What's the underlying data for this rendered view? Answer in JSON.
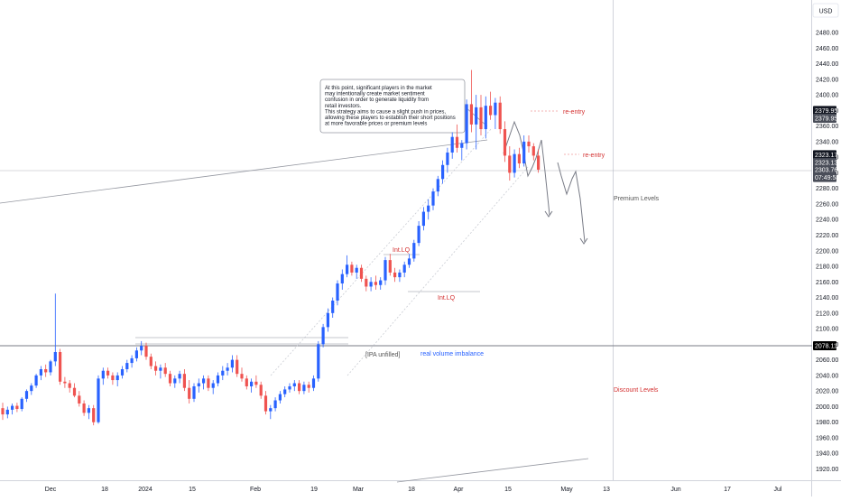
{
  "currency": "USD",
  "colors": {
    "up": "#2962ff",
    "down": "#ef5350",
    "annotation_red": "#d32f2f",
    "annotation_blue": "#2962ff",
    "annotation_gray": "#555555",
    "grid": "#f0f3fa",
    "tag_dark": "#131722",
    "tag_mid": "#4a4e59"
  },
  "price_tags": [
    {
      "value": "2379.95",
      "price": 2379.95,
      "style": "dark"
    },
    {
      "value": "2379.95",
      "price": 2370,
      "style": "mid"
    },
    {
      "value": "2323.17",
      "price": 2323.17,
      "style": "dark"
    },
    {
      "value": "2323.13",
      "price": 2313,
      "style": "mid"
    },
    {
      "value": "2303.76",
      "price": 2303.76,
      "style": "mid"
    },
    {
      "value": "07:49:58",
      "price": 2294,
      "style": "mid"
    },
    {
      "value": "2078.11",
      "price": 2078.11,
      "style": "black"
    }
  ],
  "annotations": {
    "callout": [
      "At this point, significant players in the market",
      "may intentionally create market sentiment",
      "confusion in order to generate liquidity from",
      "retail investors.",
      "This strategy aims to cause a slight push in prices,",
      "allowing these players to establish their short positions",
      "at more favorable prices or premium levels"
    ],
    "reentry_1": "re-entry",
    "reentry_2": "re-entry",
    "premium": "Premium Levels",
    "discount": "Discount Levels",
    "int_lq_1": "Int.LQ",
    "int_lq_2": "Int.LQ",
    "ipa_unfilled": "[IPA unfilled]",
    "real_volume": "real volume imbalance"
  },
  "chart_data": {
    "type": "candlestick",
    "title": "",
    "xlabel": "",
    "ylabel": "USD",
    "ylim": [
      1910,
      2500
    ],
    "y_ticks": [
      1920,
      1940,
      1960,
      1980,
      2000,
      2020,
      2040,
      2060,
      2080,
      2100,
      2120,
      2140,
      2160,
      2180,
      2200,
      2220,
      2240,
      2260,
      2280,
      2300,
      2320,
      2340,
      2360,
      2380,
      2400,
      2420,
      2440,
      2460,
      2480
    ],
    "x_ticks": [
      "Dec",
      "18",
      "2024",
      "15",
      "Feb",
      "19",
      "Mar",
      "18",
      "Apr",
      "15",
      "May",
      "13",
      "Jun",
      "17",
      "Jul"
    ],
    "grid": false,
    "price_levels": {
      "current": 2303.76,
      "horizontal_line": 2078.11,
      "high_line": 2323.13
    },
    "candles": [
      {
        "o": 1998,
        "h": 2005,
        "l": 1983,
        "c": 1990
      },
      {
        "o": 1990,
        "h": 2000,
        "l": 1985,
        "c": 1996
      },
      {
        "o": 1996,
        "h": 2004,
        "l": 1990,
        "c": 2001
      },
      {
        "o": 2001,
        "h": 2005,
        "l": 1993,
        "c": 1997
      },
      {
        "o": 1997,
        "h": 2012,
        "l": 1994,
        "c": 2010
      },
      {
        "o": 2010,
        "h": 2022,
        "l": 2006,
        "c": 2020
      },
      {
        "o": 2020,
        "h": 2030,
        "l": 2015,
        "c": 2027
      },
      {
        "o": 2027,
        "h": 2042,
        "l": 2024,
        "c": 2040
      },
      {
        "o": 2040,
        "h": 2052,
        "l": 2034,
        "c": 2048
      },
      {
        "o": 2048,
        "h": 2054,
        "l": 2038,
        "c": 2044
      },
      {
        "o": 2044,
        "h": 2060,
        "l": 2040,
        "c": 2058
      },
      {
        "o": 2058,
        "h": 2145,
        "l": 2052,
        "c": 2070
      },
      {
        "o": 2070,
        "h": 2074,
        "l": 2028,
        "c": 2032
      },
      {
        "o": 2032,
        "h": 2038,
        "l": 2024,
        "c": 2030
      },
      {
        "o": 2030,
        "h": 2034,
        "l": 2018,
        "c": 2024
      },
      {
        "o": 2024,
        "h": 2030,
        "l": 2012,
        "c": 2014
      },
      {
        "o": 2014,
        "h": 2020,
        "l": 2000,
        "c": 2004
      },
      {
        "o": 2004,
        "h": 2008,
        "l": 1988,
        "c": 1992
      },
      {
        "o": 1992,
        "h": 2002,
        "l": 1984,
        "c": 1998
      },
      {
        "o": 1998,
        "h": 2002,
        "l": 1976,
        "c": 1980
      },
      {
        "o": 1980,
        "h": 2040,
        "l": 1978,
        "c": 2036
      },
      {
        "o": 2036,
        "h": 2050,
        "l": 2028,
        "c": 2046
      },
      {
        "o": 2046,
        "h": 2050,
        "l": 2036,
        "c": 2040
      },
      {
        "o": 2040,
        "h": 2044,
        "l": 2028,
        "c": 2034
      },
      {
        "o": 2034,
        "h": 2044,
        "l": 2026,
        "c": 2040
      },
      {
        "o": 2040,
        "h": 2052,
        "l": 2036,
        "c": 2048
      },
      {
        "o": 2048,
        "h": 2060,
        "l": 2044,
        "c": 2056
      },
      {
        "o": 2056,
        "h": 2066,
        "l": 2050,
        "c": 2062
      },
      {
        "o": 2062,
        "h": 2076,
        "l": 2058,
        "c": 2072
      },
      {
        "o": 2072,
        "h": 2084,
        "l": 2066,
        "c": 2078
      },
      {
        "o": 2078,
        "h": 2082,
        "l": 2060,
        "c": 2064
      },
      {
        "o": 2064,
        "h": 2068,
        "l": 2048,
        "c": 2052
      },
      {
        "o": 2052,
        "h": 2058,
        "l": 2040,
        "c": 2046
      },
      {
        "o": 2046,
        "h": 2054,
        "l": 2036,
        "c": 2050
      },
      {
        "o": 2050,
        "h": 2056,
        "l": 2038,
        "c": 2042
      },
      {
        "o": 2042,
        "h": 2046,
        "l": 2026,
        "c": 2030
      },
      {
        "o": 2030,
        "h": 2040,
        "l": 2024,
        "c": 2036
      },
      {
        "o": 2036,
        "h": 2046,
        "l": 2030,
        "c": 2042
      },
      {
        "o": 2042,
        "h": 2048,
        "l": 2020,
        "c": 2024
      },
      {
        "o": 2024,
        "h": 2034,
        "l": 2004,
        "c": 2010
      },
      {
        "o": 2010,
        "h": 2030,
        "l": 2006,
        "c": 2026
      },
      {
        "o": 2026,
        "h": 2036,
        "l": 2018,
        "c": 2030
      },
      {
        "o": 2030,
        "h": 2040,
        "l": 2022,
        "c": 2036
      },
      {
        "o": 2036,
        "h": 2040,
        "l": 2020,
        "c": 2024
      },
      {
        "o": 2024,
        "h": 2034,
        "l": 2016,
        "c": 2030
      },
      {
        "o": 2030,
        "h": 2044,
        "l": 2026,
        "c": 2040
      },
      {
        "o": 2040,
        "h": 2052,
        "l": 2034,
        "c": 2046
      },
      {
        "o": 2046,
        "h": 2056,
        "l": 2040,
        "c": 2050
      },
      {
        "o": 2050,
        "h": 2066,
        "l": 2044,
        "c": 2060
      },
      {
        "o": 2060,
        "h": 2066,
        "l": 2038,
        "c": 2042
      },
      {
        "o": 2042,
        "h": 2050,
        "l": 2032,
        "c": 2036
      },
      {
        "o": 2036,
        "h": 2040,
        "l": 2022,
        "c": 2026
      },
      {
        "o": 2026,
        "h": 2036,
        "l": 2018,
        "c": 2032
      },
      {
        "o": 2032,
        "h": 2040,
        "l": 2024,
        "c": 2028
      },
      {
        "o": 2028,
        "h": 2032,
        "l": 2010,
        "c": 2014
      },
      {
        "o": 2014,
        "h": 2020,
        "l": 1990,
        "c": 1994
      },
      {
        "o": 1994,
        "h": 2002,
        "l": 1984,
        "c": 1998
      },
      {
        "o": 1998,
        "h": 2012,
        "l": 1994,
        "c": 2008
      },
      {
        "o": 2008,
        "h": 2020,
        "l": 2004,
        "c": 2016
      },
      {
        "o": 2016,
        "h": 2026,
        "l": 2012,
        "c": 2022
      },
      {
        "o": 2022,
        "h": 2030,
        "l": 2018,
        "c": 2026
      },
      {
        "o": 2026,
        "h": 2034,
        "l": 2020,
        "c": 2030
      },
      {
        "o": 2030,
        "h": 2034,
        "l": 2016,
        "c": 2020
      },
      {
        "o": 2020,
        "h": 2032,
        "l": 2016,
        "c": 2028
      },
      {
        "o": 2028,
        "h": 2032,
        "l": 2018,
        "c": 2024
      },
      {
        "o": 2024,
        "h": 2040,
        "l": 2020,
        "c": 2036
      },
      {
        "o": 2036,
        "h": 2084,
        "l": 2032,
        "c": 2080
      },
      {
        "o": 2080,
        "h": 2106,
        "l": 2076,
        "c": 2102
      },
      {
        "o": 2102,
        "h": 2126,
        "l": 2096,
        "c": 2120
      },
      {
        "o": 2120,
        "h": 2140,
        "l": 2114,
        "c": 2136
      },
      {
        "o": 2136,
        "h": 2162,
        "l": 2130,
        "c": 2158
      },
      {
        "o": 2158,
        "h": 2176,
        "l": 2150,
        "c": 2170
      },
      {
        "o": 2170,
        "h": 2194,
        "l": 2166,
        "c": 2182
      },
      {
        "o": 2182,
        "h": 2186,
        "l": 2168,
        "c": 2172
      },
      {
        "o": 2172,
        "h": 2182,
        "l": 2164,
        "c": 2178
      },
      {
        "o": 2178,
        "h": 2182,
        "l": 2160,
        "c": 2164
      },
      {
        "o": 2164,
        "h": 2168,
        "l": 2148,
        "c": 2154
      },
      {
        "o": 2154,
        "h": 2166,
        "l": 2148,
        "c": 2160
      },
      {
        "o": 2160,
        "h": 2168,
        "l": 2150,
        "c": 2156
      },
      {
        "o": 2156,
        "h": 2166,
        "l": 2150,
        "c": 2162
      },
      {
        "o": 2162,
        "h": 2192,
        "l": 2156,
        "c": 2188
      },
      {
        "o": 2188,
        "h": 2196,
        "l": 2168,
        "c": 2172
      },
      {
        "o": 2172,
        "h": 2178,
        "l": 2160,
        "c": 2166
      },
      {
        "o": 2166,
        "h": 2176,
        "l": 2160,
        "c": 2172
      },
      {
        "o": 2172,
        "h": 2186,
        "l": 2166,
        "c": 2182
      },
      {
        "o": 2182,
        "h": 2196,
        "l": 2178,
        "c": 2190
      },
      {
        "o": 2190,
        "h": 2214,
        "l": 2186,
        "c": 2210
      },
      {
        "o": 2210,
        "h": 2238,
        "l": 2206,
        "c": 2232
      },
      {
        "o": 2232,
        "h": 2256,
        "l": 2226,
        "c": 2250
      },
      {
        "o": 2250,
        "h": 2266,
        "l": 2240,
        "c": 2258
      },
      {
        "o": 2258,
        "h": 2280,
        "l": 2252,
        "c": 2276
      },
      {
        "o": 2276,
        "h": 2296,
        "l": 2270,
        "c": 2292
      },
      {
        "o": 2292,
        "h": 2316,
        "l": 2286,
        "c": 2310
      },
      {
        "o": 2310,
        "h": 2332,
        "l": 2300,
        "c": 2326
      },
      {
        "o": 2326,
        "h": 2352,
        "l": 2318,
        "c": 2346
      },
      {
        "o": 2346,
        "h": 2362,
        "l": 2326,
        "c": 2332
      },
      {
        "o": 2332,
        "h": 2342,
        "l": 2316,
        "c": 2338
      },
      {
        "o": 2338,
        "h": 2394,
        "l": 2330,
        "c": 2388
      },
      {
        "o": 2388,
        "h": 2432,
        "l": 2352,
        "c": 2362
      },
      {
        "o": 2362,
        "h": 2400,
        "l": 2330,
        "c": 2384
      },
      {
        "o": 2384,
        "h": 2400,
        "l": 2348,
        "c": 2356
      },
      {
        "o": 2356,
        "h": 2398,
        "l": 2344,
        "c": 2386
      },
      {
        "o": 2386,
        "h": 2404,
        "l": 2368,
        "c": 2374
      },
      {
        "o": 2374,
        "h": 2396,
        "l": 2356,
        "c": 2390
      },
      {
        "o": 2390,
        "h": 2398,
        "l": 2350,
        "c": 2356
      },
      {
        "o": 2356,
        "h": 2366,
        "l": 2314,
        "c": 2322
      },
      {
        "o": 2322,
        "h": 2334,
        "l": 2290,
        "c": 2300
      },
      {
        "o": 2300,
        "h": 2330,
        "l": 2294,
        "c": 2324
      },
      {
        "o": 2324,
        "h": 2332,
        "l": 2306,
        "c": 2312
      },
      {
        "o": 2312,
        "h": 2348,
        "l": 2308,
        "c": 2340
      },
      {
        "o": 2340,
        "h": 2348,
        "l": 2326,
        "c": 2334
      },
      {
        "o": 2334,
        "h": 2338,
        "l": 2316,
        "c": 2322
      },
      {
        "o": 2322,
        "h": 2330,
        "l": 2300,
        "c": 2304
      }
    ]
  }
}
